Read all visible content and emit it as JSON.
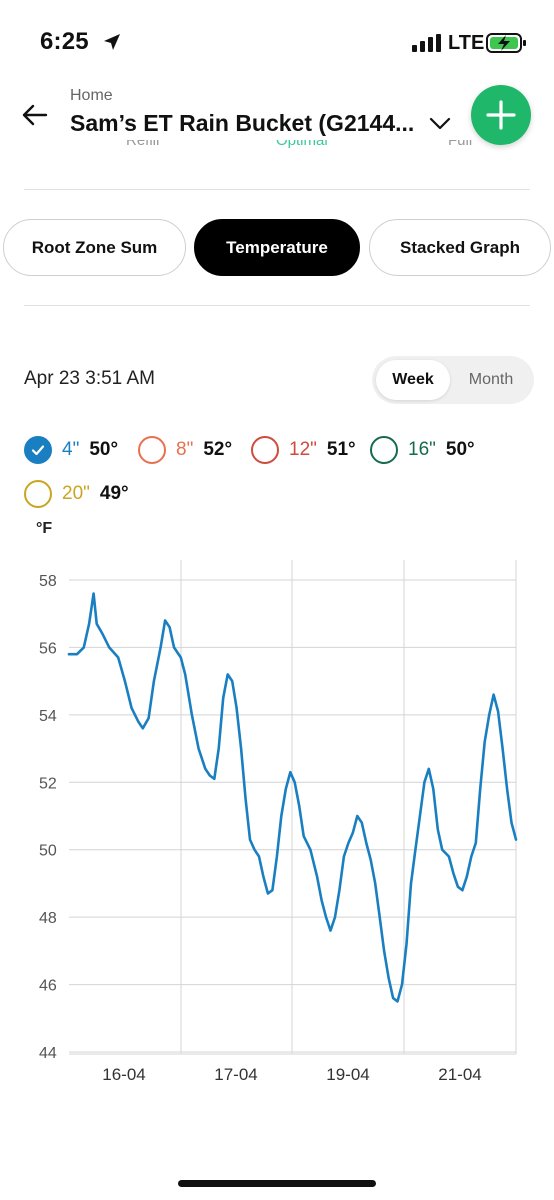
{
  "status_bar": {
    "time": "6:25",
    "network": "LTE"
  },
  "header": {
    "breadcrumb": "Home",
    "title": "Sam’s ET Rain Bucket (G2144...",
    "add_icon": "plus-icon",
    "accent_color": "#1fb86a"
  },
  "scroll_remnant": [
    "Refill",
    "Optimal",
    "Full"
  ],
  "tabs": [
    {
      "label": "Root Zone Sum",
      "active": false
    },
    {
      "label": "Temperature",
      "active": true
    },
    {
      "label": "Stacked Graph",
      "active": false
    }
  ],
  "date_label": "Apr 23 3:51 AM",
  "range_toggle": [
    {
      "label": "Week",
      "active": true
    },
    {
      "label": "Month",
      "active": false
    }
  ],
  "legend": [
    {
      "depth": "4\"",
      "value": "50°",
      "color": "#1a7fc1",
      "checked": true
    },
    {
      "depth": "8\"",
      "value": "52°",
      "color": "#e8704f",
      "checked": false
    },
    {
      "depth": "12\"",
      "value": "51°",
      "color": "#cf4b3c",
      "checked": false
    },
    {
      "depth": "16\"",
      "value": "50°",
      "color": "#146b4f",
      "checked": false
    },
    {
      "depth": "20\"",
      "value": "49°",
      "color": "#c9a521",
      "checked": false
    }
  ],
  "unit": "°F",
  "chart_data": {
    "type": "line",
    "ylabel": "°F",
    "ylim": [
      44,
      58
    ],
    "y_ticks": [
      "58",
      "56",
      "54",
      "52",
      "50",
      "48",
      "46",
      "44"
    ],
    "x_ticks": [
      "16-04",
      "17-04",
      "19-04",
      "21-04"
    ],
    "grid": true,
    "series": [
      {
        "name": "4\"",
        "color": "#1a7fc1",
        "points": [
          [
            0.0,
            55.8
          ],
          [
            0.18,
            55.8
          ],
          [
            0.33,
            56.0
          ],
          [
            0.45,
            56.7
          ],
          [
            0.55,
            57.6
          ],
          [
            0.62,
            56.7
          ],
          [
            0.75,
            56.4
          ],
          [
            0.9,
            56.0
          ],
          [
            1.1,
            55.7
          ],
          [
            1.25,
            55.0
          ],
          [
            1.4,
            54.2
          ],
          [
            1.55,
            53.8
          ],
          [
            1.65,
            53.6
          ],
          [
            1.78,
            53.9
          ],
          [
            1.9,
            55.0
          ],
          [
            2.05,
            56.0
          ],
          [
            2.15,
            56.8
          ],
          [
            2.25,
            56.6
          ],
          [
            2.35,
            56.0
          ],
          [
            2.5,
            55.7
          ],
          [
            2.6,
            55.2
          ],
          [
            2.75,
            54.0
          ],
          [
            2.9,
            53.0
          ],
          [
            3.05,
            52.4
          ],
          [
            3.15,
            52.2
          ],
          [
            3.25,
            52.1
          ],
          [
            3.35,
            53.0
          ],
          [
            3.45,
            54.5
          ],
          [
            3.55,
            55.2
          ],
          [
            3.65,
            55.0
          ],
          [
            3.75,
            54.2
          ],
          [
            3.85,
            53.0
          ],
          [
            3.95,
            51.5
          ],
          [
            4.05,
            50.3
          ],
          [
            4.15,
            50.0
          ],
          [
            4.25,
            49.8
          ],
          [
            4.35,
            49.2
          ],
          [
            4.45,
            48.7
          ],
          [
            4.55,
            48.8
          ],
          [
            4.65,
            49.8
          ],
          [
            4.75,
            51.0
          ],
          [
            4.85,
            51.8
          ],
          [
            4.95,
            52.3
          ],
          [
            5.05,
            52.0
          ],
          [
            5.15,
            51.3
          ],
          [
            5.25,
            50.4
          ],
          [
            5.4,
            50.0
          ],
          [
            5.55,
            49.2
          ],
          [
            5.65,
            48.5
          ],
          [
            5.75,
            48.0
          ],
          [
            5.85,
            47.6
          ],
          [
            5.95,
            48.0
          ],
          [
            6.05,
            48.8
          ],
          [
            6.15,
            49.8
          ],
          [
            6.25,
            50.2
          ],
          [
            6.35,
            50.5
          ],
          [
            6.45,
            51.0
          ],
          [
            6.55,
            50.8
          ],
          [
            6.65,
            50.2
          ],
          [
            6.75,
            49.7
          ],
          [
            6.85,
            49.0
          ],
          [
            6.95,
            48.0
          ],
          [
            7.05,
            47.0
          ],
          [
            7.15,
            46.2
          ],
          [
            7.25,
            45.6
          ],
          [
            7.35,
            45.5
          ],
          [
            7.45,
            46.0
          ],
          [
            7.55,
            47.2
          ],
          [
            7.65,
            49.0
          ],
          [
            7.75,
            50.0
          ],
          [
            7.85,
            51.0
          ],
          [
            7.95,
            52.0
          ],
          [
            8.05,
            52.4
          ],
          [
            8.15,
            51.8
          ],
          [
            8.25,
            50.6
          ],
          [
            8.35,
            50.0
          ],
          [
            8.5,
            49.8
          ],
          [
            8.6,
            49.3
          ],
          [
            8.7,
            48.9
          ],
          [
            8.8,
            48.8
          ],
          [
            8.9,
            49.2
          ],
          [
            9.0,
            49.8
          ],
          [
            9.1,
            50.2
          ],
          [
            9.2,
            51.8
          ],
          [
            9.3,
            53.2
          ],
          [
            9.4,
            54.0
          ],
          [
            9.5,
            54.6
          ],
          [
            9.6,
            54.1
          ],
          [
            9.7,
            53.0
          ],
          [
            9.8,
            51.8
          ],
          [
            9.9,
            50.8
          ],
          [
            10.0,
            50.3
          ]
        ]
      }
    ]
  }
}
